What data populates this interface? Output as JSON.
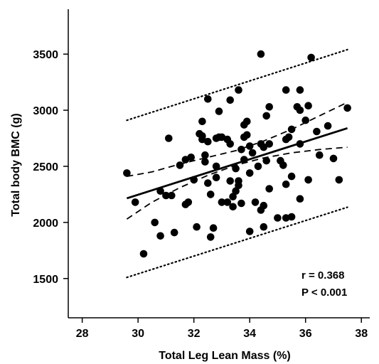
{
  "chart_data": {
    "type": "scatter",
    "xlabel": "Total Leg Lean Mass (%)",
    "ylabel": "Total body BMC (g)",
    "xlim": [
      27.5,
      38.3
    ],
    "ylim": [
      1150,
      3900
    ],
    "x_ticks": [
      28,
      30,
      32,
      34,
      36,
      38
    ],
    "y_ticks": [
      1500,
      2000,
      2500,
      3000,
      3500
    ],
    "x_tick_labels": [
      "28",
      "30",
      "32",
      "34",
      "36",
      "38"
    ],
    "y_tick_labels": [
      "1500",
      "2000",
      "2500",
      "3000",
      "3500"
    ],
    "annotations": {
      "r": "r = 0.368",
      "p": "P < 0.001"
    },
    "grid": false,
    "points": [
      [
        29.6,
        2440
      ],
      [
        29.9,
        2180
      ],
      [
        30.2,
        1720
      ],
      [
        30.6,
        2000
      ],
      [
        30.8,
        2280
      ],
      [
        30.8,
        1880
      ],
      [
        31.0,
        2240
      ],
      [
        31.1,
        2750
      ],
      [
        31.2,
        2240
      ],
      [
        31.3,
        1910
      ],
      [
        31.5,
        2510
      ],
      [
        31.7,
        2560
      ],
      [
        31.7,
        2160
      ],
      [
        31.8,
        2180
      ],
      [
        31.9,
        2580
      ],
      [
        32.0,
        2380
      ],
      [
        32.1,
        1960
      ],
      [
        32.2,
        2790
      ],
      [
        32.3,
        2770
      ],
      [
        32.3,
        2740
      ],
      [
        32.3,
        2900
      ],
      [
        32.4,
        2600
      ],
      [
        32.4,
        2540
      ],
      [
        32.5,
        2720
      ],
      [
        32.5,
        3100
      ],
      [
        32.5,
        2350
      ],
      [
        32.6,
        2250
      ],
      [
        32.6,
        1870
      ],
      [
        32.7,
        1950
      ],
      [
        32.8,
        2750
      ],
      [
        32.8,
        2500
      ],
      [
        32.8,
        2400
      ],
      [
        32.9,
        2990
      ],
      [
        32.9,
        2760
      ],
      [
        33.0,
        2760
      ],
      [
        33.0,
        2180
      ],
      [
        33.2,
        2740
      ],
      [
        33.2,
        2180
      ],
      [
        33.3,
        2700
      ],
      [
        33.3,
        3090
      ],
      [
        33.3,
        2370
      ],
      [
        33.4,
        2230
      ],
      [
        33.4,
        2140
      ],
      [
        33.5,
        2480
      ],
      [
        33.5,
        2280
      ],
      [
        33.6,
        3180
      ],
      [
        33.6,
        2370
      ],
      [
        33.6,
        2330
      ],
      [
        33.7,
        2650
      ],
      [
        33.7,
        2170
      ],
      [
        33.8,
        2760
      ],
      [
        33.8,
        2560
      ],
      [
        33.8,
        2870
      ],
      [
        33.9,
        2900
      ],
      [
        33.9,
        2780
      ],
      [
        34.0,
        2680
      ],
      [
        34.0,
        2440
      ],
      [
        34.0,
        1920
      ],
      [
        34.1,
        2620
      ],
      [
        34.2,
        2180
      ],
      [
        34.3,
        2500
      ],
      [
        34.4,
        3500
      ],
      [
        34.4,
        2700
      ],
      [
        34.4,
        2110
      ],
      [
        34.5,
        2670
      ],
      [
        34.5,
        2150
      ],
      [
        34.5,
        1960
      ],
      [
        34.6,
        2950
      ],
      [
        34.6,
        2550
      ],
      [
        34.7,
        3030
      ],
      [
        34.7,
        2700
      ],
      [
        34.7,
        2300
      ],
      [
        35.0,
        2040
      ],
      [
        35.1,
        2550
      ],
      [
        35.2,
        2510
      ],
      [
        35.3,
        3180
      ],
      [
        35.3,
        2740
      ],
      [
        35.3,
        2340
      ],
      [
        35.3,
        2040
      ],
      [
        35.4,
        2760
      ],
      [
        35.5,
        2830
      ],
      [
        35.5,
        2410
      ],
      [
        35.5,
        2050
      ],
      [
        35.7,
        3030
      ],
      [
        35.8,
        3180
      ],
      [
        35.8,
        3000
      ],
      [
        35.8,
        2700
      ],
      [
        35.8,
        2210
      ],
      [
        36.0,
        2910
      ],
      [
        36.1,
        3040
      ],
      [
        36.1,
        2380
      ],
      [
        36.2,
        3470
      ],
      [
        36.4,
        2810
      ],
      [
        36.5,
        2600
      ],
      [
        36.8,
        2860
      ],
      [
        37.0,
        2570
      ],
      [
        37.2,
        2380
      ],
      [
        37.5,
        3020
      ]
    ],
    "regression_line": {
      "x": [
        29.6,
        37.5
      ],
      "y": [
        2215,
        2840
      ]
    },
    "confidence_band": {
      "upper": {
        "x": [
          29.6,
          30.5,
          31.5,
          32.5,
          33.5,
          34.5,
          35.5,
          36.5,
          37.5
        ],
        "y": [
          2410,
          2450,
          2520,
          2580,
          2640,
          2725,
          2830,
          2950,
          3070
        ]
      },
      "lower": {
        "x": [
          29.6,
          30.5,
          31.5,
          32.5,
          33.5,
          34.5,
          35.5,
          36.5,
          37.5
        ],
        "y": [
          2030,
          2180,
          2310,
          2420,
          2510,
          2575,
          2620,
          2650,
          2670
        ]
      }
    },
    "prediction_band": {
      "upper": {
        "x": [
          29.6,
          37.5
        ],
        "y": [
          2910,
          3540
        ]
      },
      "lower": {
        "x": [
          29.6,
          37.5
        ],
        "y": [
          1510,
          2135
        ]
      }
    }
  }
}
